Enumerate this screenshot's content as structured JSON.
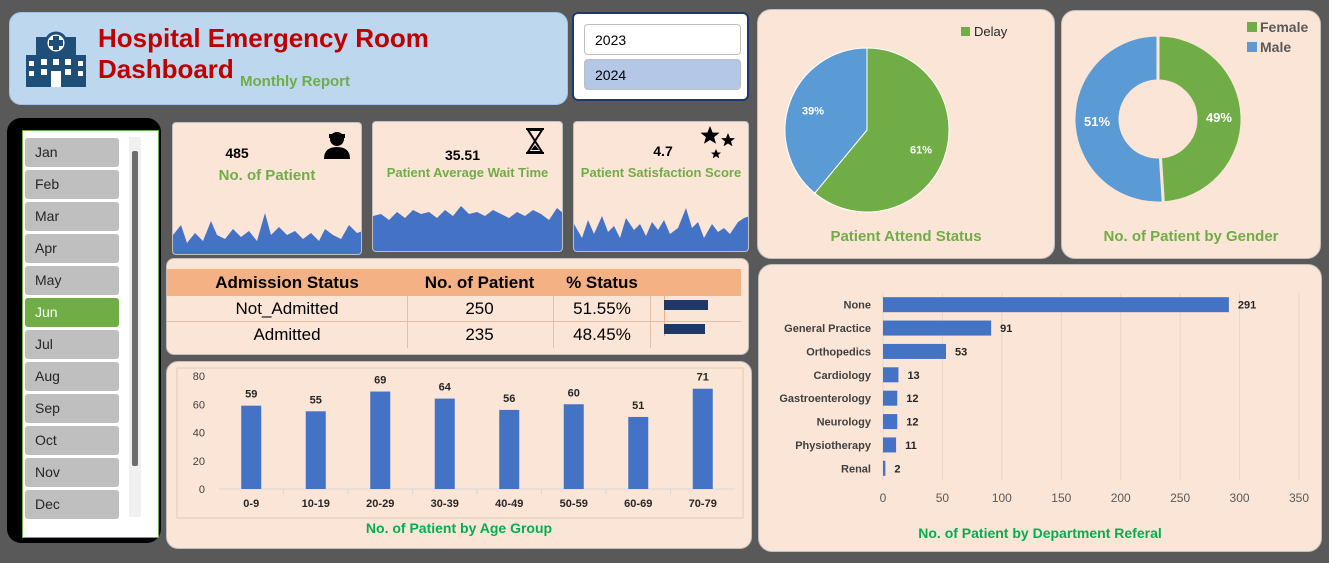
{
  "header": {
    "title": "Hospital Emergency Room Dashboard",
    "subtitle": "Monthly Report"
  },
  "year_filter": {
    "options": [
      "2023",
      "2024"
    ],
    "selected": "2024"
  },
  "month_filter": {
    "options": [
      "Jan",
      "Feb",
      "Mar",
      "Apr",
      "May",
      "Jun",
      "Jul",
      "Aug",
      "Sep",
      "Oct",
      "Nov",
      "Dec"
    ],
    "selected": "Jun"
  },
  "kpis": {
    "patients": {
      "value": "485",
      "label": "No. of Patient",
      "icon": "person-icon"
    },
    "wait_time": {
      "value": "35.51",
      "label": "Patient Average Wait Time",
      "icon": "hourglass-icon"
    },
    "satisfaction": {
      "value": "4.7",
      "label": "Patient Satisfaction Score",
      "icon": "stars-icon"
    }
  },
  "admission": {
    "headers": [
      "Admission Status",
      "No. of Patient",
      "% Status"
    ],
    "rows": [
      {
        "status": "Not_Admitted",
        "count": "250",
        "pct": "51.55%"
      },
      {
        "status": "Admitted",
        "count": "235",
        "pct": "48.45%"
      }
    ]
  },
  "colors": {
    "green": "#70ad47",
    "blue": "#4472c4",
    "light_blue": "#5b9bd5",
    "red": "#c00000",
    "navy": "#1f3864"
  },
  "chart_data": [
    {
      "type": "pie",
      "title": "Patient Attend Status",
      "legend": [
        "Delay"
      ],
      "legend_position": "top-right",
      "slices": [
        {
          "name": "Delay",
          "value": 61,
          "label": "61%",
          "color": "#70ad47"
        },
        {
          "name": "",
          "value": 39,
          "label": "39%",
          "color": "#5b9bd5"
        }
      ]
    },
    {
      "type": "pie",
      "subtype": "donut",
      "title": "No. of  Patient by Gender",
      "legend": [
        "Female",
        "Male"
      ],
      "legend_position": "top-right",
      "slices": [
        {
          "name": "Female",
          "value": 49,
          "label": "49%",
          "color": "#70ad47"
        },
        {
          "name": "Male",
          "value": 51,
          "label": "51%",
          "color": "#5b9bd5"
        }
      ]
    },
    {
      "type": "bar",
      "title": "No. of Patient by Age Group",
      "categories": [
        "0-9",
        "10-19",
        "20-29",
        "30-39",
        "40-49",
        "50-59",
        "60-69",
        "70-79"
      ],
      "values": [
        59,
        55,
        69,
        64,
        56,
        60,
        51,
        71
      ],
      "yticks": [
        "0",
        "20",
        "40",
        "60",
        "80"
      ],
      "ylim": [
        0,
        80
      ],
      "color": "#4472c4"
    },
    {
      "type": "bar",
      "orientation": "horizontal",
      "title": "No. of Patient by Department Referal",
      "categories": [
        "None",
        "General Practice",
        "Orthopedics",
        "Cardiology",
        "Gastroenterology",
        "Neurology",
        "Physiotherapy",
        "Renal"
      ],
      "values": [
        291,
        91,
        53,
        13,
        12,
        12,
        11,
        2
      ],
      "xticks": [
        "0",
        "50",
        "100",
        "150",
        "200",
        "250",
        "300",
        "350"
      ],
      "xlim": [
        0,
        350
      ],
      "grid": true,
      "color": "#4472c4"
    }
  ]
}
